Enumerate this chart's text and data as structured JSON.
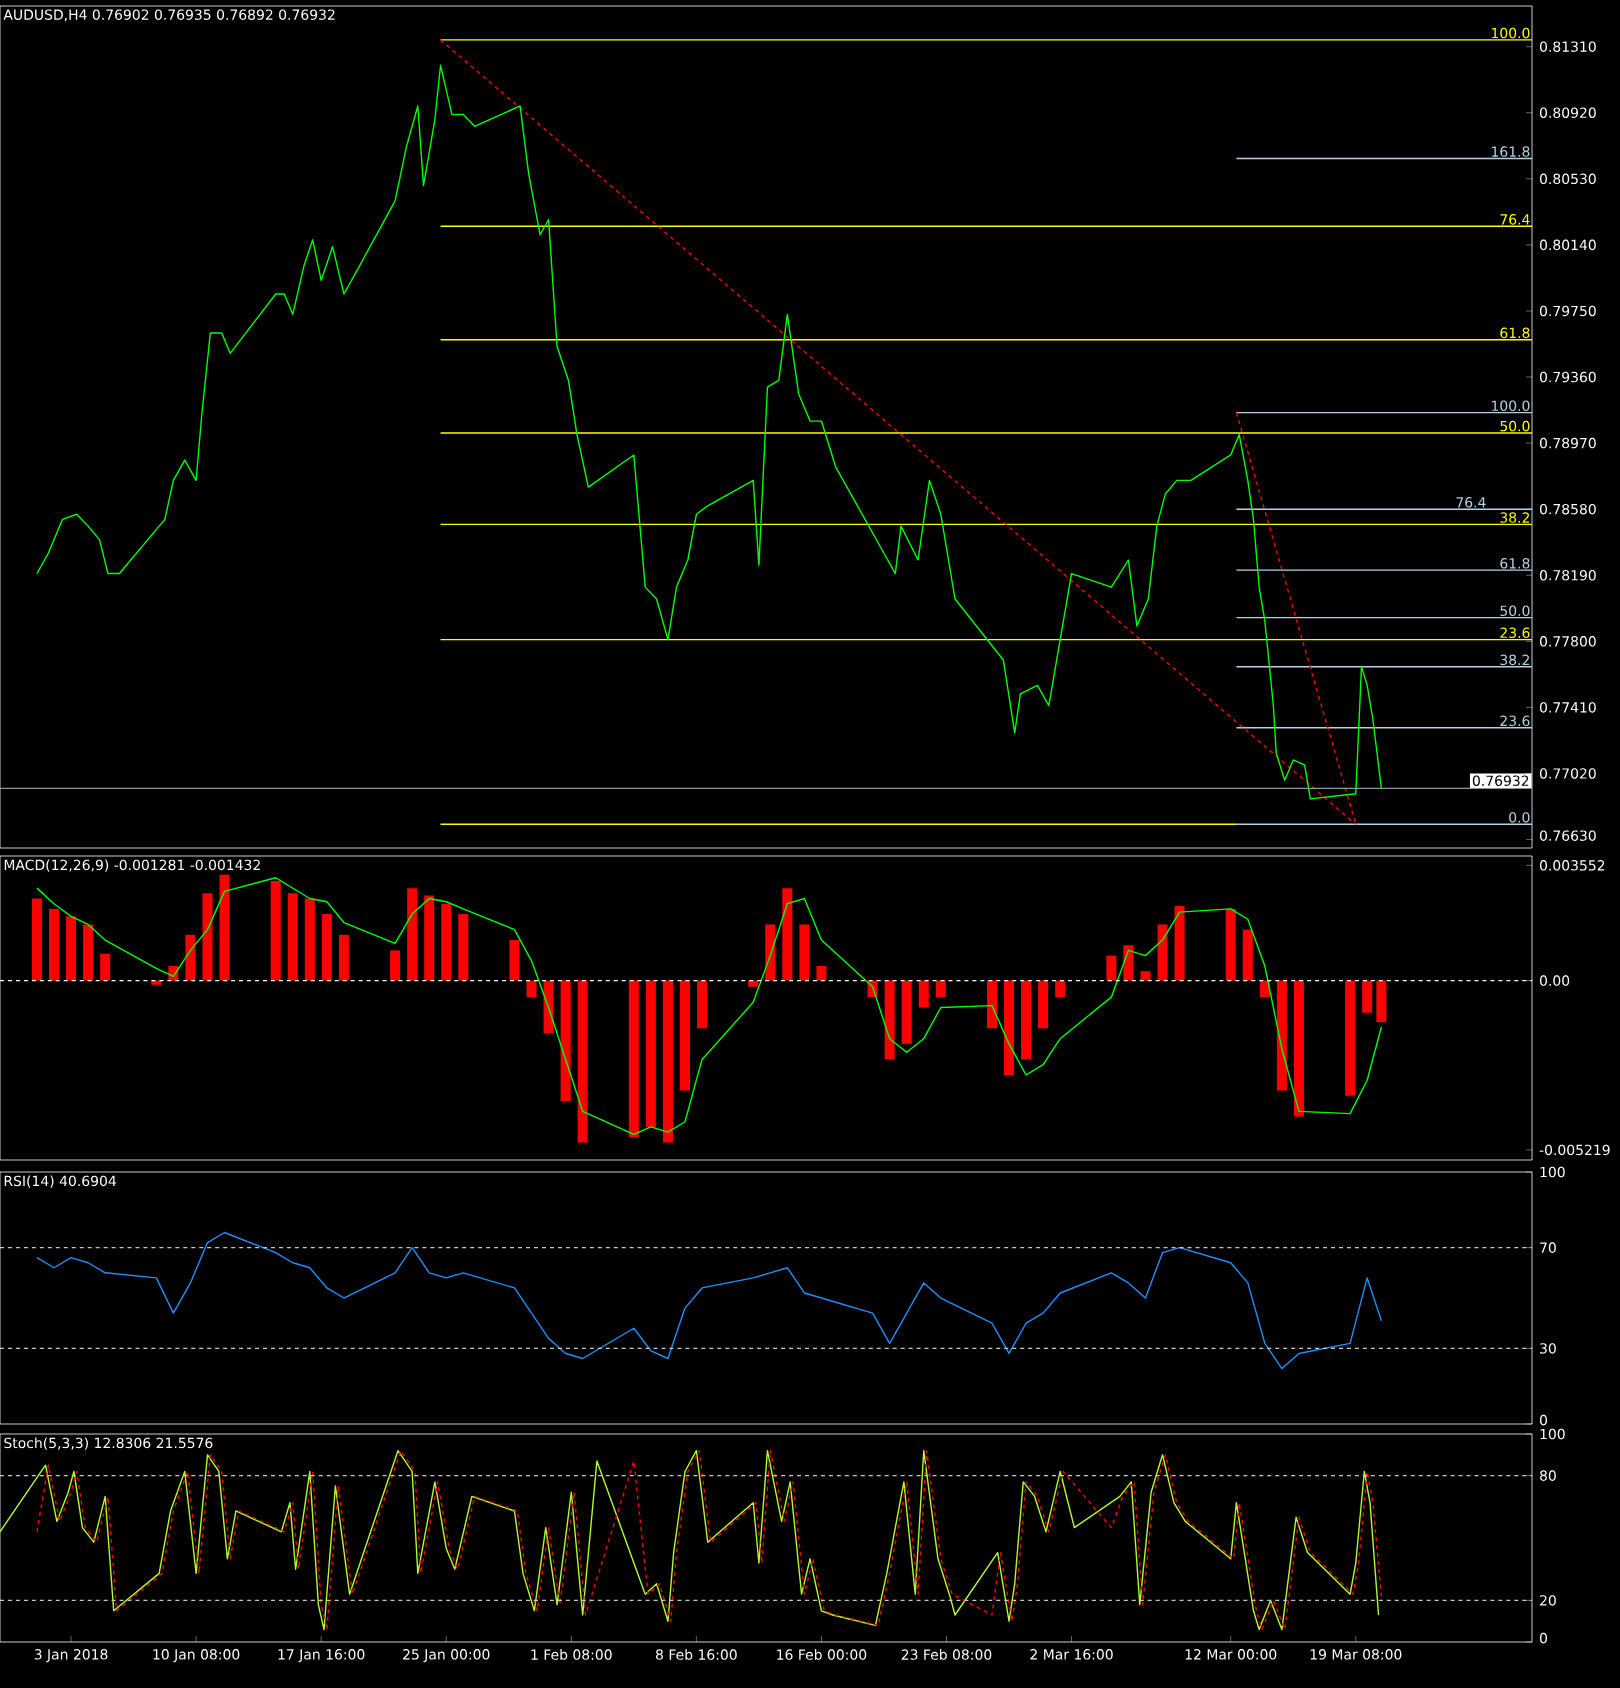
{
  "chart_data": [
    {
      "type": "line",
      "title": "AUDUSD,H4 0.76902 0.76935 0.76892 0.76932",
      "xlim": [
        "2017-12-29T20:00",
        "2018-03-29T16:00"
      ],
      "ylim": [
        0.7658,
        0.8155
      ],
      "tick_labels": "y",
      "yticks": [
        {
          "value": 0.8131,
          "label": "0.81310"
        },
        {
          "value": 0.8092,
          "label": "0.80920"
        },
        {
          "value": 0.8053,
          "label": "0.80530"
        },
        {
          "value": 0.8014,
          "label": "0.80140"
        },
        {
          "value": 0.7975,
          "label": "0.79750"
        },
        {
          "value": 0.7936,
          "label": "0.79360"
        },
        {
          "value": 0.7897,
          "label": "0.78970"
        },
        {
          "value": 0.7858,
          "label": "0.78580"
        },
        {
          "value": 0.7819,
          "label": "0.78190"
        },
        {
          "value": 0.778,
          "label": "0.77800"
        },
        {
          "value": 0.7741,
          "label": "0.77410"
        },
        {
          "value": 0.7702,
          "label": "0.77020"
        },
        {
          "value": 0.7663,
          "label": "0.76630"
        }
      ],
      "ref_lines": [
        {
          "axis": "y",
          "value": 0.76932,
          "label": "0.76932",
          "color": "#8c96a0"
        }
      ],
      "series": [
        {
          "name": "100.0",
          "color": "#ffff00",
          "x": [
            "2018-01-24T16:00",
            "2018-03-29T16:00"
          ],
          "values": [
            0.8135,
            0.8135
          ]
        },
        {
          "name": "76.4",
          "color": "#ffff00",
          "x": [
            "2018-01-24T16:00",
            "2018-03-29T16:00"
          ],
          "values": [
            0.8025,
            0.8025
          ]
        },
        {
          "name": "61.8",
          "color": "#ffff00",
          "x": [
            "2018-01-24T16:00",
            "2018-03-29T16:00"
          ],
          "values": [
            0.7958,
            0.7958
          ]
        },
        {
          "name": "50.0",
          "color": "#ffff00",
          "x": [
            "2018-01-24T16:00",
            "2018-03-29T16:00"
          ],
          "values": [
            0.7903,
            0.7903
          ]
        },
        {
          "name": "38.2",
          "color": "#ffff00",
          "x": [
            "2018-01-24T16:00",
            "2018-03-29T16:00"
          ],
          "values": [
            0.7849,
            0.7849
          ]
        },
        {
          "name": "23.6",
          "color": "#ffff00",
          "x": [
            "2018-01-24T16:00",
            "2018-03-29T16:00"
          ],
          "values": [
            0.7781,
            0.7781
          ]
        },
        {
          "color": "#ffff00",
          "x": [
            "2018-01-24T16:00",
            "2018-03-12T08:00"
          ],
          "values": [
            0.7672,
            0.7672
          ]
        },
        {
          "name": "161.8",
          "color": "#b4d2e6",
          "x": [
            "2018-03-12T08:00",
            "2018-03-29T16:00"
          ],
          "values": [
            0.8065,
            0.8065
          ]
        },
        {
          "name": "100.0",
          "color": "#b4d2e6",
          "x": [
            "2018-03-12T08:00",
            "2018-03-29T16:00"
          ],
          "values": [
            0.7915,
            0.7915
          ]
        },
        {
          "name": "76.4",
          "color": "#b4d2e6",
          "x": [
            "2018-03-12T08:00",
            "2018-03-29T16:00"
          ],
          "values": [
            0.7858,
            0.7858
          ]
        },
        {
          "name": "61.8",
          "color": "#b4d2e6",
          "x": [
            "2018-03-12T08:00",
            "2018-03-29T16:00"
          ],
          "values": [
            0.7822,
            0.7822
          ]
        },
        {
          "name": "50.0",
          "color": "#b4d2e6",
          "x": [
            "2018-03-12T08:00",
            "2018-03-29T16:00"
          ],
          "values": [
            0.7794,
            0.7794
          ]
        },
        {
          "name": "38.2",
          "color": "#b4d2e6",
          "x": [
            "2018-03-12T08:00",
            "2018-03-29T16:00"
          ],
          "values": [
            0.7765,
            0.7765
          ]
        },
        {
          "name": "23.6",
          "color": "#b4d2e6",
          "x": [
            "2018-03-12T08:00",
            "2018-03-29T16:00"
          ],
          "values": [
            0.7729,
            0.7729
          ]
        },
        {
          "name": "0.0",
          "color": "#b4d2e6",
          "x": [
            "2018-03-12T08:00",
            "2018-03-29T16:00"
          ],
          "values": [
            0.7672,
            0.7672
          ]
        },
        {
          "color": "#ff0000",
          "line_style": "dashed",
          "x": [
            "2018-01-24T16:00",
            "2018-03-19T08:00"
          ],
          "values": [
            0.8135,
            0.7672
          ]
        },
        {
          "color": "#ff0000",
          "line_style": "dashed",
          "x": [
            "2018-03-12T08:00",
            "2018-03-19T08:00"
          ],
          "values": [
            0.7915,
            0.7672
          ]
        },
        {
          "color": "#00ff00",
          "x": [
            "2018-01-01T00:00",
            "2018-01-01T16:00",
            "2018-01-02T12:00",
            "2018-01-03T08:00",
            "2018-01-04T00:00",
            "2018-01-04T16:00",
            "2018-01-05T04:00",
            "2018-01-05T20:00",
            "2018-01-08T12:00",
            "2018-01-09T00:00",
            "2018-01-09T16:00",
            "2018-01-10T08:00",
            "2018-01-10T16:00",
            "2018-01-11T04:00",
            "2018-01-11T20:00",
            "2018-01-12T08:00",
            "2018-01-15T00:00",
            "2018-01-15T12:00",
            "2018-01-16T00:00",
            "2018-01-16T16:00",
            "2018-01-17T04:00",
            "2018-01-17T16:00",
            "2018-01-18T08:00",
            "2018-01-19T00:00",
            "2018-01-19T16:00",
            "2018-01-22T00:00",
            "2018-01-22T16:00",
            "2018-01-23T08:00",
            "2018-01-23T16:00",
            "2018-01-24T08:00",
            "2018-01-24T16:00",
            "2018-01-25T08:00",
            "2018-01-26T00:00",
            "2018-01-26T16:00",
            "2018-01-29T08:00",
            "2018-01-29T20:00",
            "2018-01-30T12:00",
            "2018-01-31T00:00",
            "2018-01-31T12:00",
            "2018-02-01T04:00",
            "2018-02-01T16:00",
            "2018-02-02T08:00",
            "2018-02-05T00:00",
            "2018-02-05T16:00",
            "2018-02-06T08:00",
            "2018-02-07T00:00",
            "2018-02-07T12:00",
            "2018-02-08T04:00",
            "2018-02-08T16:00",
            "2018-02-09T08:00",
            "2018-02-12T00:00",
            "2018-02-12T08:00",
            "2018-02-12T20:00",
            "2018-02-13T12:00",
            "2018-02-14T00:00",
            "2018-02-14T16:00",
            "2018-02-15T08:00",
            "2018-02-16T00:00",
            "2018-02-16T20:00",
            "2018-02-19T16:00",
            "2018-02-20T08:00",
            "2018-02-20T16:00",
            "2018-02-21T16:00",
            "2018-02-22T08:00",
            "2018-02-23T00:00",
            "2018-02-23T20:00",
            "2018-02-26T16:00",
            "2018-02-27T08:00",
            "2018-02-27T16:00",
            "2018-02-28T16:00",
            "2018-03-01T08:00",
            "2018-03-02T00:00",
            "2018-03-02T16:00",
            "2018-03-05T00:00",
            "2018-03-06T00:00",
            "2018-03-06T12:00",
            "2018-03-07T04:00",
            "2018-03-07T16:00",
            "2018-03-08T04:00",
            "2018-03-08T20:00",
            "2018-03-09T16:00",
            "2018-03-12T00:00",
            "2018-03-12T12:00",
            "2018-03-13T00:00",
            "2018-03-13T08:00",
            "2018-03-13T16:00",
            "2018-03-14T00:00",
            "2018-03-14T12:00",
            "2018-03-14T16:00",
            "2018-03-15T04:00",
            "2018-03-15T16:00",
            "2018-03-16T08:00",
            "2018-03-16T16:00",
            "2018-03-19T08:00",
            "2018-03-19T16:00",
            "2018-03-20T00:00",
            "2018-03-20T08:00",
            "2018-03-20T16:00",
            "2018-03-20T20:00"
          ],
          "values": [
            0.782,
            0.7832,
            0.7852,
            0.7855,
            0.7848,
            0.784,
            0.782,
            0.782,
            0.7852,
            0.7875,
            0.7887,
            0.7875,
            0.7914,
            0.7962,
            0.7962,
            0.795,
            0.7985,
            0.7985,
            0.7973,
            0.8002,
            0.8017,
            0.7993,
            0.8013,
            0.7985,
            0.7997,
            0.804,
            0.8072,
            0.8096,
            0.8049,
            0.8088,
            0.812,
            0.8091,
            0.8091,
            0.8084,
            0.8096,
            0.8056,
            0.802,
            0.8029,
            0.7954,
            0.7934,
            0.7902,
            0.7871,
            0.789,
            0.7812,
            0.7805,
            0.7781,
            0.7812,
            0.7828,
            0.7855,
            0.786,
            0.7875,
            0.7825,
            0.793,
            0.7934,
            0.7973,
            0.7926,
            0.791,
            0.791,
            0.7883,
            0.7832,
            0.782,
            0.7848,
            0.7828,
            0.7875,
            0.7855,
            0.7805,
            0.7769,
            0.7726,
            0.7749,
            0.7754,
            0.7742,
            0.7781,
            0.782,
            0.7812,
            0.7828,
            0.7789,
            0.7805,
            0.7848,
            0.7867,
            0.7875,
            0.7875,
            0.789,
            0.7902,
            0.7875,
            0.7852,
            0.7812,
            0.7792,
            0.7742,
            0.7714,
            0.7698,
            0.771,
            0.7707,
            0.7687,
            0.769,
            0.7765,
            0.7754,
            0.7734,
            0.7707,
            0.7693
          ]
        }
      ]
    },
    {
      "type": "bar",
      "title": "MACD(12,26,9) -0.001281 -0.001432",
      "xlim": [
        "2017-12-29T20:00",
        "2018-03-29T16:00"
      ],
      "ylim": [
        -0.00553,
        0.00384
      ],
      "tick_labels": "y",
      "yticks": [
        {
          "value": 0.003552,
          "label": "0.003552"
        },
        {
          "value": 0,
          "label": "0.00"
        },
        {
          "value": -0.005219,
          "label": "-0.005219"
        }
      ],
      "ref_lines": [
        {
          "axis": "y",
          "value": 0,
          "color": "#ffffff",
          "line_style": "dashed"
        }
      ],
      "series": [
        {
          "color": "#ff0000",
          "x": [
            "2018-01-01",
            "2018-01-02",
            "2018-01-03",
            "2018-01-04",
            "2018-01-05",
            "2018-01-08",
            "2018-01-09",
            "2018-01-10",
            "2018-01-11",
            "2018-01-12",
            "2018-01-15",
            "2018-01-16",
            "2018-01-17",
            "2018-01-18",
            "2018-01-19",
            "2018-01-22",
            "2018-01-23",
            "2018-01-24",
            "2018-01-25",
            "2018-01-26",
            "2018-01-29",
            "2018-01-30",
            "2018-01-31",
            "2018-02-01",
            "2018-02-02",
            "2018-02-05",
            "2018-02-06",
            "2018-02-07",
            "2018-02-08",
            "2018-02-09",
            "2018-02-12",
            "2018-02-13",
            "2018-02-14",
            "2018-02-15",
            "2018-02-16",
            "2018-02-19",
            "2018-02-20",
            "2018-02-21",
            "2018-02-22",
            "2018-02-23",
            "2018-02-26",
            "2018-02-27",
            "2018-02-28",
            "2018-03-01",
            "2018-03-02",
            "2018-03-05",
            "2018-03-06",
            "2018-03-07",
            "2018-03-08",
            "2018-03-09",
            "2018-03-12",
            "2018-03-13",
            "2018-03-14",
            "2018-03-15",
            "2018-03-16",
            "2018-03-19",
            "2018-03-20",
            "2018-03-20T20:00"
          ],
          "values": [
            0.00253,
            0.00221,
            0.00198,
            0.00173,
            0.00083,
            -0.00013,
            0.00045,
            0.00141,
            0.00269,
            0.00326,
            0.00307,
            0.00269,
            0.00253,
            0.00205,
            0.00141,
            0.00093,
            0.00285,
            0.00262,
            0.00237,
            0.00205,
            0.00125,
            -0.00051,
            -0.00163,
            -0.00371,
            -0.00499,
            -0.00483,
            -0.00451,
            -0.00499,
            -0.00339,
            -0.00147,
            -0.00019,
            0.00173,
            0.00285,
            0.00173,
            0.00045,
            -0.00051,
            -0.00243,
            -0.00195,
            -0.00083,
            -0.00051,
            -0.00147,
            -0.00291,
            -0.00243,
            -0.00147,
            -0.00051,
            0.00077,
            0.00109,
            0.00029,
            0.00173,
            0.0023,
            0.00221,
            0.00157,
            -0.00051,
            -0.00339,
            -0.00419,
            -0.00355,
            -0.00099,
            -0.00128
          ]
        },
        {
          "type": "line",
          "color": "#00ff00",
          "x": [
            "2018-01-01",
            "2018-01-02",
            "2018-01-03",
            "2018-01-04",
            "2018-01-05",
            "2018-01-08",
            "2018-01-09",
            "2018-01-10",
            "2018-01-11",
            "2018-01-12",
            "2018-01-15",
            "2018-01-16",
            "2018-01-17",
            "2018-01-18",
            "2018-01-19",
            "2018-01-22",
            "2018-01-23",
            "2018-01-24",
            "2018-01-25",
            "2018-01-26",
            "2018-01-29",
            "2018-01-30",
            "2018-01-31",
            "2018-02-01",
            "2018-02-02",
            "2018-02-05",
            "2018-02-06",
            "2018-02-07",
            "2018-02-08",
            "2018-02-09",
            "2018-02-12",
            "2018-02-13",
            "2018-02-14",
            "2018-02-15",
            "2018-02-16",
            "2018-02-19",
            "2018-02-20",
            "2018-02-21",
            "2018-02-22",
            "2018-02-23",
            "2018-02-26",
            "2018-02-27",
            "2018-02-28",
            "2018-03-01",
            "2018-03-02",
            "2018-03-05",
            "2018-03-06",
            "2018-03-07",
            "2018-03-08",
            "2018-03-09",
            "2018-03-12",
            "2018-03-13",
            "2018-03-14",
            "2018-03-15",
            "2018-03-16",
            "2018-03-19",
            "2018-03-20",
            "2018-03-20T20:00"
          ],
          "values": [
            0.00285,
            0.00237,
            0.00198,
            0.00173,
            0.00125,
            0.00038,
            0.00013,
            0.00093,
            0.00157,
            0.00275,
            0.00317,
            0.00285,
            0.00253,
            0.00243,
            0.00179,
            0.00115,
            0.00205,
            0.00253,
            0.00243,
            0.00221,
            0.00157,
            0.00061,
            -0.00083,
            -0.00243,
            -0.00403,
            -0.00474,
            -0.00451,
            -0.00467,
            -0.00435,
            -0.00243,
            -0.00067,
            0.00077,
            0.00237,
            0.00253,
            0.00125,
            -0.00019,
            -0.00179,
            -0.00221,
            -0.00179,
            -0.00083,
            -0.00077,
            -0.00195,
            -0.00291,
            -0.00259,
            -0.00179,
            -0.00051,
            0.00093,
            0.00077,
            0.00125,
            0.00211,
            0.00221,
            0.00189,
            0.00045,
            -0.00211,
            -0.00403,
            -0.0041,
            -0.00307,
            -0.00143
          ]
        }
      ]
    },
    {
      "type": "line",
      "title": "RSI(14) 40.6904",
      "xlim": [
        "2017-12-29T20:00",
        "2018-03-29T16:00"
      ],
      "ylim": [
        0,
        100
      ],
      "tick_labels": "y",
      "yticks": [
        0,
        30,
        70,
        100
      ],
      "ref_lines": [
        {
          "axis": "y",
          "value": 70,
          "color": "#c8c8c8",
          "line_style": "dashed"
        },
        {
          "axis": "y",
          "value": 30,
          "color": "#c8c8c8",
          "line_style": "dashed"
        }
      ],
      "series": [
        {
          "color": "#1e90ff",
          "x": [
            "2018-01-01",
            "2018-01-02",
            "2018-01-03",
            "2018-01-04",
            "2018-01-05",
            "2018-01-08",
            "2018-01-09",
            "2018-01-10",
            "2018-01-11",
            "2018-01-12",
            "2018-01-15",
            "2018-01-16",
            "2018-01-17",
            "2018-01-18",
            "2018-01-19",
            "2018-01-22",
            "2018-01-23",
            "2018-01-24",
            "2018-01-25",
            "2018-01-26",
            "2018-01-29",
            "2018-01-30",
            "2018-01-31",
            "2018-02-01",
            "2018-02-02",
            "2018-02-05",
            "2018-02-06",
            "2018-02-07",
            "2018-02-08",
            "2018-02-09",
            "2018-02-12",
            "2018-02-13",
            "2018-02-14",
            "2018-02-15",
            "2018-02-16",
            "2018-02-19",
            "2018-02-20",
            "2018-02-21",
            "2018-02-22",
            "2018-02-23",
            "2018-02-26",
            "2018-02-27",
            "2018-02-28",
            "2018-03-01",
            "2018-03-02",
            "2018-03-05",
            "2018-03-06",
            "2018-03-07",
            "2018-03-08",
            "2018-03-09",
            "2018-03-12",
            "2018-03-13",
            "2018-03-14",
            "2018-03-15",
            "2018-03-16",
            "2018-03-19",
            "2018-03-20",
            "2018-03-20T20:00"
          ],
          "values": [
            66,
            62,
            66,
            64,
            60,
            58,
            44,
            56,
            72,
            76,
            68,
            64,
            62,
            54,
            50,
            60,
            70,
            60,
            58,
            60,
            54,
            44,
            34,
            28,
            26,
            38,
            29,
            26,
            46,
            54,
            58,
            60,
            62,
            52,
            50,
            44,
            32,
            44,
            56,
            50,
            40,
            28,
            40,
            44,
            52,
            60,
            56,
            50,
            68,
            70,
            64,
            56,
            32,
            22,
            28,
            32,
            58,
            41
          ]
        }
      ]
    },
    {
      "type": "line",
      "title": "Stoch(5,3,3) 12.8306 21.5576",
      "xlim": [
        "2017-12-29T20:00",
        "2018-03-29T16:00"
      ],
      "ylim": [
        0,
        100
      ],
      "yticks": [
        0,
        20,
        80,
        100
      ],
      "xticks": [
        {
          "value": "2018-01-03T00:00",
          "label": "3 Jan 2018"
        },
        {
          "value": "2018-01-10T08:00",
          "label": "10 Jan 08:00"
        },
        {
          "value": "2018-01-17T16:00",
          "label": "17 Jan 16:00"
        },
        {
          "value": "2018-01-25T00:00",
          "label": "25 Jan 00:00"
        },
        {
          "value": "2018-02-01T08:00",
          "label": "1 Feb 08:00"
        },
        {
          "value": "2018-02-08T16:00",
          "label": "8 Feb 16:00"
        },
        {
          "value": "2018-02-16T00:00",
          "label": "16 Feb 00:00"
        },
        {
          "value": "2018-02-23T08:00",
          "label": "23 Feb 08:00"
        },
        {
          "value": "2018-03-02T16:00",
          "label": "2 Mar 16:00"
        },
        {
          "value": "2018-03-12T00:00",
          "label": "12 Mar 00:00"
        },
        {
          "value": "2018-03-19T08:00",
          "label": "19 Mar 08:00"
        }
      ],
      "ref_lines": [
        {
          "axis": "y",
          "value": 80,
          "color": "#c8c8c8",
          "line_style": "dashed"
        },
        {
          "axis": "y",
          "value": 20,
          "color": "#c8c8c8",
          "line_style": "dashed"
        }
      ],
      "series": [
        {
          "color": "#adff2f",
          "x": [
            "2017-12-29T20:00",
            "2018-01-01T12:00",
            "2018-01-02T04:00",
            "2018-01-02T20:00",
            "2018-01-03T04:00",
            "2018-01-03T16:00",
            "2018-01-04T08:00",
            "2018-01-05T00:00",
            "2018-01-05T12:00",
            "2018-01-08T04:00",
            "2018-01-08T20:00",
            "2018-01-09T16:00",
            "2018-01-10T08:00",
            "2018-01-11T00:00",
            "2018-01-11T16:00",
            "2018-01-12T04:00",
            "2018-01-12T16:00",
            "2018-01-15T08:00",
            "2018-01-15T20:00",
            "2018-01-16T04:00",
            "2018-01-17T00:00",
            "2018-01-17T12:00",
            "2018-01-17T20:00",
            "2018-01-18T12:00",
            "2018-01-19T08:00",
            "2018-01-22T04:00",
            "2018-01-23T00:00",
            "2018-01-23T08:00",
            "2018-01-24T08:00",
            "2018-01-25T00:00",
            "2018-01-25T12:00",
            "2018-01-26T12:00",
            "2018-01-29T00:00",
            "2018-01-29T12:00",
            "2018-01-30T04:00",
            "2018-01-30T20:00",
            "2018-01-31T12:00",
            "2018-02-01T08:00",
            "2018-02-02T00:00",
            "2018-02-02T20:00",
            "2018-02-05T16:00",
            "2018-02-06T08:00",
            "2018-02-07T00:00",
            "2018-02-07T08:00",
            "2018-02-08T00:00",
            "2018-02-08T16:00",
            "2018-02-09T08:00",
            "2018-02-12T00:00",
            "2018-02-12T08:00",
            "2018-02-12T20:00",
            "2018-02-13T16:00",
            "2018-02-14T04:00",
            "2018-02-14T20:00",
            "2018-02-15T08:00",
            "2018-02-16T00:00",
            "2018-02-16T16:00",
            "2018-02-19T04:00",
            "2018-02-19T20:00",
            "2018-02-20T20:00",
            "2018-02-21T12:00",
            "2018-02-22T00:00",
            "2018-02-22T20:00",
            "2018-02-23T12:00",
            "2018-02-23T20:00",
            "2018-02-26T08:00",
            "2018-02-27T00:00",
            "2018-02-27T08:00",
            "2018-02-27T20:00",
            "2018-02-28T12:00",
            "2018-03-01T04:00",
            "2018-03-02T00:00",
            "2018-03-02T20:00",
            "2018-03-05T12:00",
            "2018-03-06T04:00",
            "2018-03-06T16:00",
            "2018-03-07T08:00",
            "2018-03-08T00:00",
            "2018-03-08T16:00",
            "2018-03-09T08:00",
            "2018-03-12T00:00",
            "2018-03-12T08:00",
            "2018-03-13T08:00",
            "2018-03-13T16:00",
            "2018-03-14T08:00",
            "2018-03-15T00:00",
            "2018-03-15T20:00",
            "2018-03-16T12:00",
            "2018-03-19T00:00",
            "2018-03-19T08:00",
            "2018-03-19T20:00",
            "2018-03-20T04:00",
            "2018-03-20T16:00"
          ],
          "values": [
            53,
            85,
            58,
            72,
            82,
            55,
            48,
            70,
            15,
            33,
            63,
            82,
            33,
            90,
            82,
            40,
            63,
            53,
            67,
            35,
            82,
            18,
            6,
            75,
            23,
            92,
            82,
            33,
            77,
            45,
            35,
            70,
            63,
            33,
            15,
            55,
            18,
            72,
            13,
            87,
            23,
            28,
            10,
            43,
            82,
            92,
            48,
            67,
            38,
            92,
            58,
            77,
            23,
            40,
            15,
            13,
            8,
            33,
            77,
            23,
            92,
            40,
            23,
            13,
            43,
            10,
            28,
            77,
            70,
            53,
            82,
            55,
            70,
            77,
            18,
            72,
            90,
            67,
            58,
            40,
            67,
            15,
            6,
            20,
            6,
            60,
            43,
            23,
            38,
            82,
            67,
            13
          ]
        },
        {
          "color": "#ff0000",
          "line_style": "dashed",
          "x": [
            "2018-01-01T00:00",
            "2018-01-01T16:00",
            "2018-01-02T08:00",
            "2018-01-03T00:00",
            "2018-01-03T08:00",
            "2018-01-03T20:00",
            "2018-01-04T12:00",
            "2018-01-05T04:00",
            "2018-01-05T16:00",
            "2018-01-08T08:00",
            "2018-01-09T00:00",
            "2018-01-09T20:00",
            "2018-01-10T12:00",
            "2018-01-11T04:00",
            "2018-01-11T20:00",
            "2018-01-12T08:00",
            "2018-01-12T20:00",
            "2018-01-15T12:00",
            "2018-01-16T00:00",
            "2018-01-16T08:00",
            "2018-01-17T04:00",
            "2018-01-17T16:00",
            "2018-01-18T00:00",
            "2018-01-18T16:00",
            "2018-01-19T12:00",
            "2018-01-22T08:00",
            "2018-01-23T04:00",
            "2018-01-23T12:00",
            "2018-01-24T12:00",
            "2018-01-25T04:00",
            "2018-01-25T16:00",
            "2018-01-26T16:00",
            "2018-01-29T04:00",
            "2018-01-29T16:00",
            "2018-01-30T08:00",
            "2018-01-31T00:00",
            "2018-01-31T16:00",
            "2018-02-01T12:00",
            "2018-02-02T04:00",
            "2018-02-05T00:00",
            "2018-02-05T20:00",
            "2018-02-06T12:00",
            "2018-02-07T04:00",
            "2018-02-07T12:00",
            "2018-02-08T04:00",
            "2018-02-08T20:00",
            "2018-02-09T12:00",
            "2018-02-12T04:00",
            "2018-02-12T12:00",
            "2018-02-13T00:00",
            "2018-02-13T20:00",
            "2018-02-14T08:00",
            "2018-02-15T00:00",
            "2018-02-15T12:00",
            "2018-02-16T04:00",
            "2018-02-16T20:00",
            "2018-02-19T08:00",
            "2018-02-20T00:00",
            "2018-02-21T00:00",
            "2018-02-21T16:00",
            "2018-02-22T04:00",
            "2018-02-23T00:00",
            "2018-02-23T16:00",
            "2018-02-26T00:00",
            "2018-02-26T12:00",
            "2018-02-27T04:00",
            "2018-02-27T12:00",
            "2018-02-28T00:00",
            "2018-02-28T16:00",
            "2018-03-01T08:00",
            "2018-03-02T04:00",
            "2018-03-05T00:00",
            "2018-03-05T16:00",
            "2018-03-06T08:00",
            "2018-03-06T20:00",
            "2018-03-07T12:00",
            "2018-03-08T04:00",
            "2018-03-08T20:00",
            "2018-03-09T12:00",
            "2018-03-12T04:00",
            "2018-03-12T12:00",
            "2018-03-13T12:00",
            "2018-03-13T20:00",
            "2018-03-14T12:00",
            "2018-03-15T04:00",
            "2018-03-16T00:00",
            "2018-03-16T16:00",
            "2018-03-19T04:00",
            "2018-03-19T12:00",
            "2018-03-20T00:00",
            "2018-03-20T08:00",
            "2018-03-20T20:00"
          ],
          "values": [
            53,
            85,
            58,
            72,
            82,
            55,
            48,
            70,
            15,
            33,
            63,
            82,
            33,
            90,
            82,
            40,
            63,
            53,
            67,
            35,
            82,
            18,
            6,
            75,
            23,
            92,
            82,
            33,
            77,
            45,
            35,
            70,
            63,
            33,
            15,
            55,
            18,
            72,
            13,
            87,
            23,
            28,
            10,
            43,
            82,
            92,
            48,
            67,
            38,
            92,
            58,
            77,
            23,
            40,
            15,
            13,
            8,
            33,
            77,
            23,
            92,
            40,
            23,
            13,
            43,
            10,
            28,
            77,
            70,
            53,
            82,
            55,
            70,
            77,
            18,
            72,
            90,
            67,
            58,
            40,
            67,
            15,
            6,
            20,
            6,
            60,
            43,
            23,
            38,
            82,
            67,
            22
          ]
        }
      ]
    }
  ]
}
